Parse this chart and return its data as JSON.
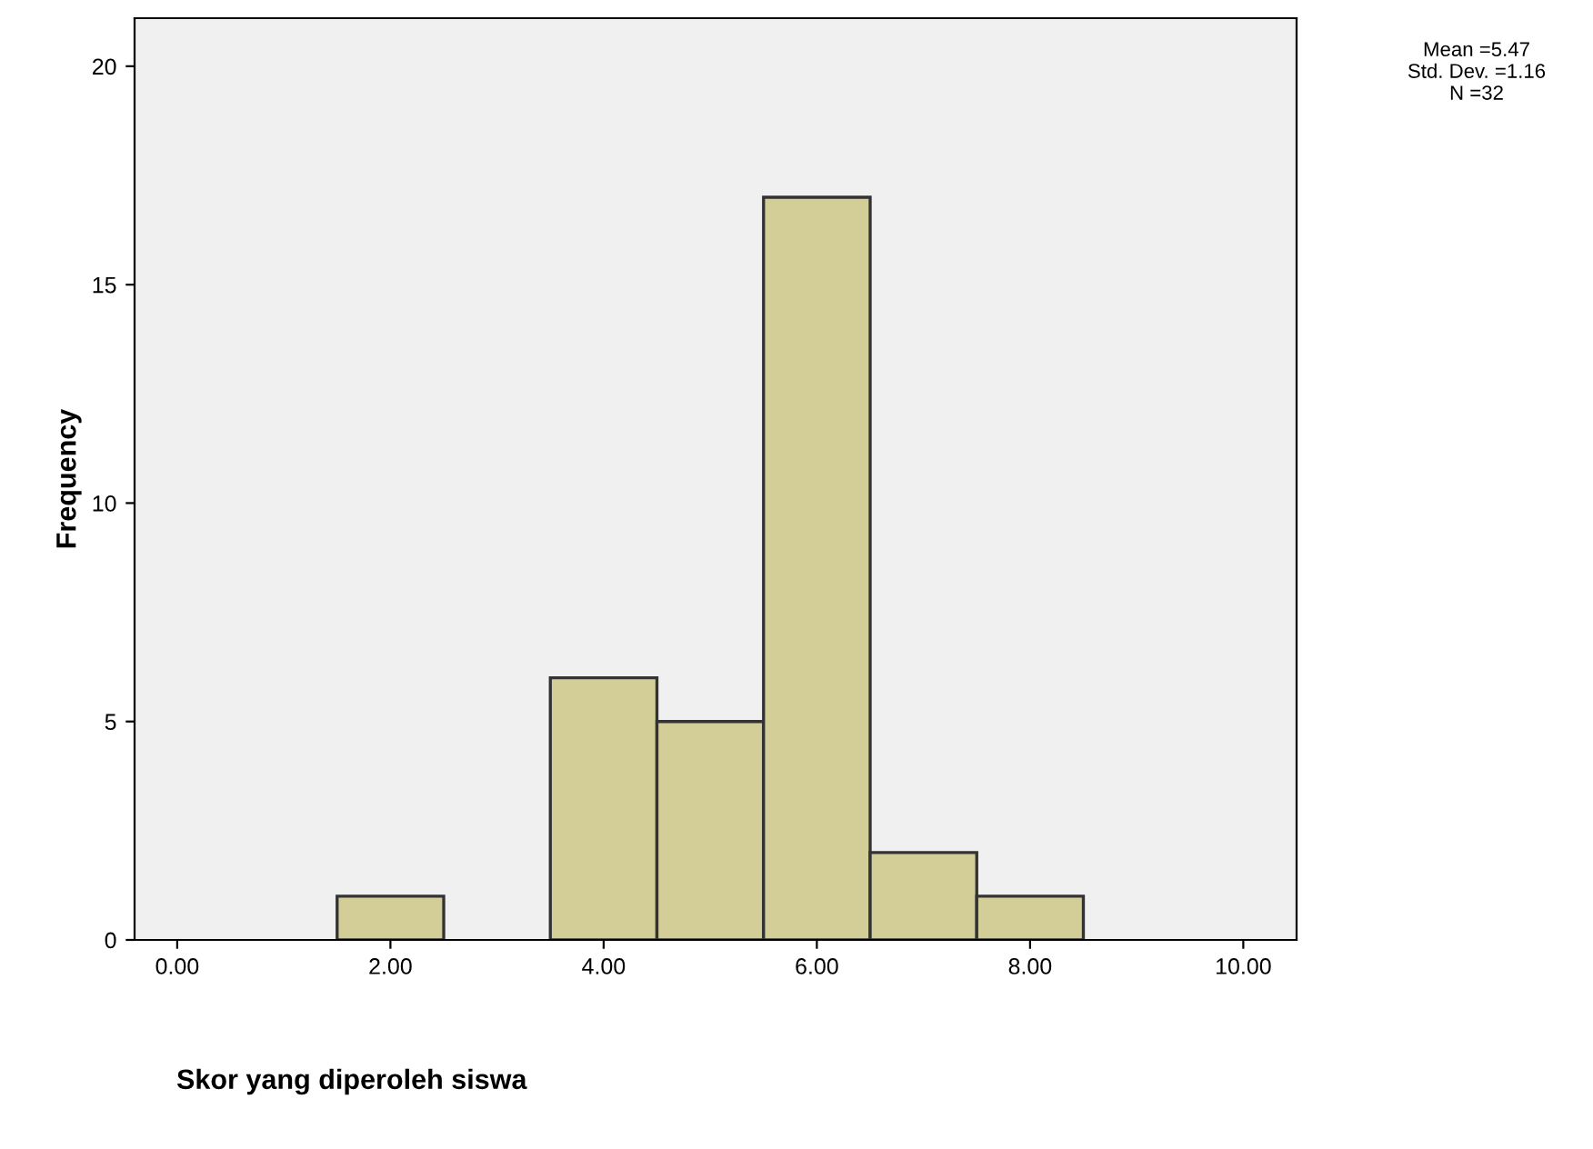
{
  "chart_data": {
    "type": "histogram",
    "xlabel": "Skor yang diperoleh siswa",
    "ylabel": "Frequency",
    "bins": [
      1.5,
      2.5,
      3.5,
      4.5,
      5.5,
      6.5,
      7.5,
      8.5
    ],
    "values": [
      1,
      0,
      6,
      5,
      17,
      2,
      1
    ],
    "color": "#d3ce97",
    "xlim": [
      -0.4,
      10.5
    ],
    "ylim": [
      0,
      21.1
    ],
    "xticks": [
      {
        "value": 0,
        "label": "0.00"
      },
      {
        "value": 2,
        "label": "2.00"
      },
      {
        "value": 4,
        "label": "4.00"
      },
      {
        "value": 6,
        "label": "6.00"
      },
      {
        "value": 8,
        "label": "8.00"
      },
      {
        "value": 10,
        "label": "10.00"
      }
    ],
    "yticks": [
      0,
      5,
      10,
      15,
      20
    ],
    "grid": false,
    "annotations": [
      "Mean =5.47\nStd. Dev. =1.16\nN =32"
    ]
  }
}
